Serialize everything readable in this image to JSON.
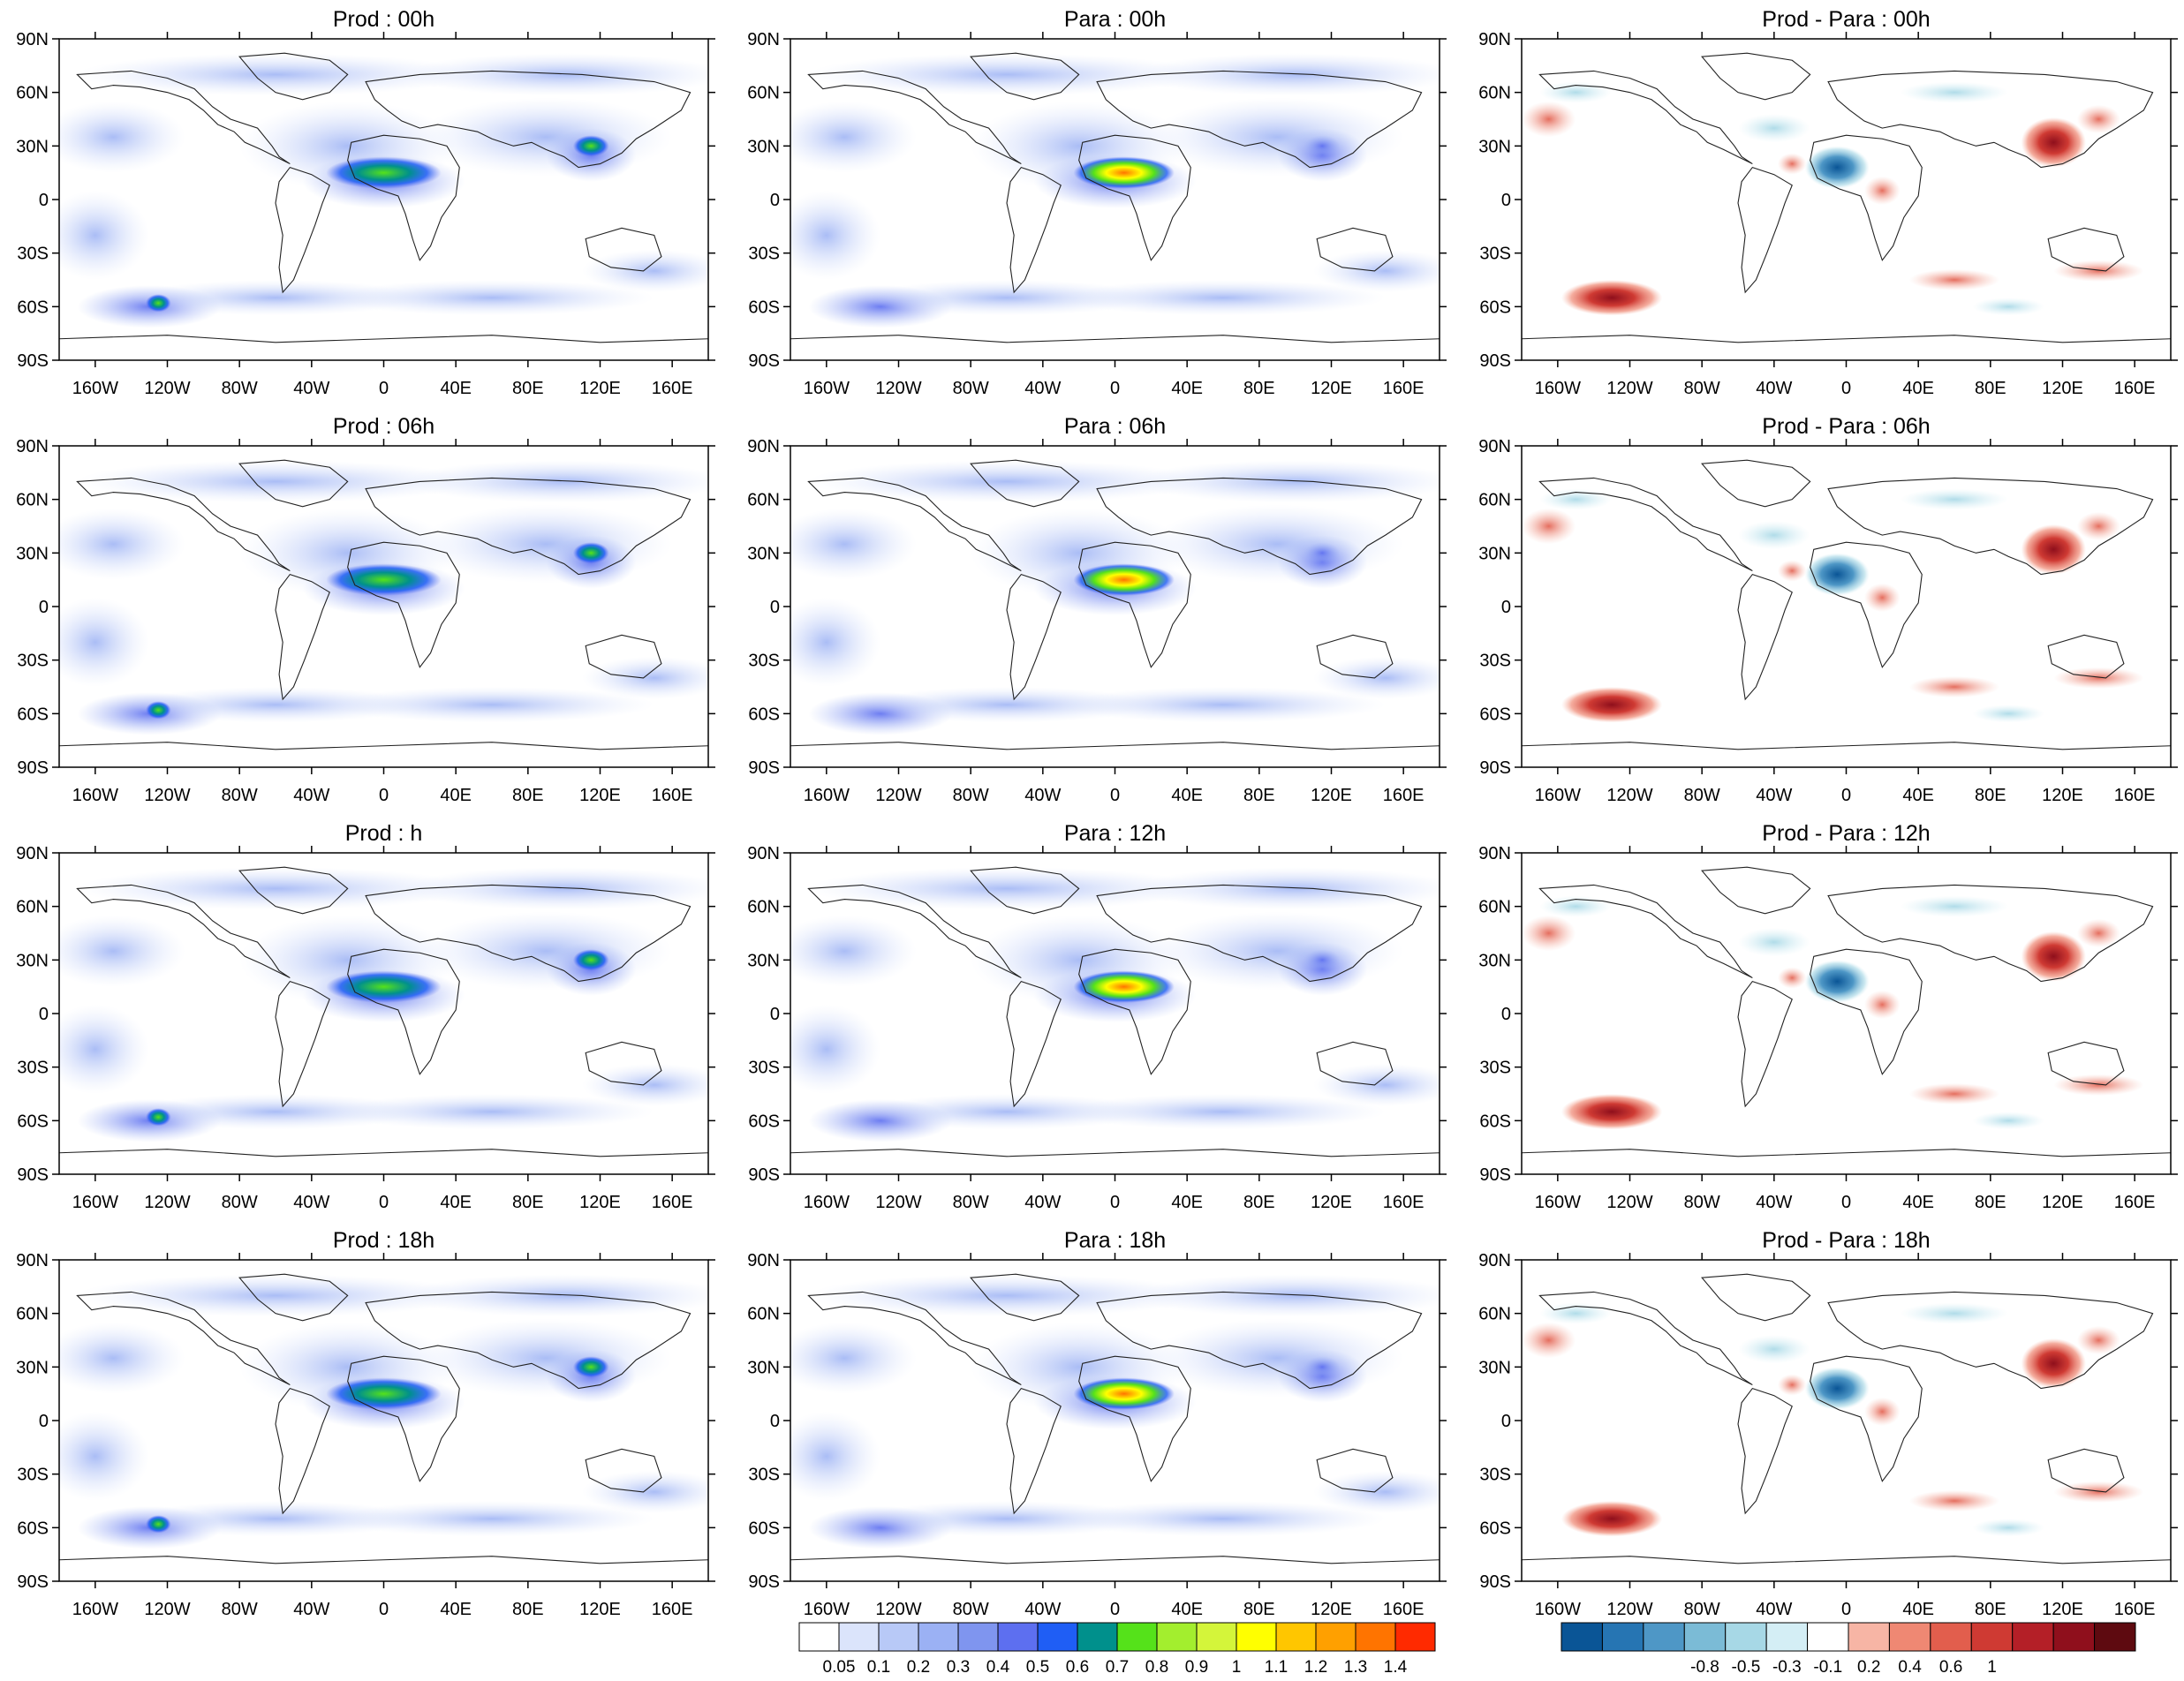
{
  "panels": [
    {
      "title": "Prod : 00h",
      "kind": "field"
    },
    {
      "title": "Para : 00h",
      "kind": "field"
    },
    {
      "title": "Prod - Para : 00h",
      "kind": "diff"
    },
    {
      "title": "Prod : 06h",
      "kind": "field"
    },
    {
      "title": "Para : 06h",
      "kind": "field"
    },
    {
      "title": "Prod - Para : 06h",
      "kind": "diff"
    },
    {
      "title": "Prod : h",
      "kind": "field"
    },
    {
      "title": "Para : 12h",
      "kind": "field"
    },
    {
      "title": "Prod - Para : 12h",
      "kind": "diff"
    },
    {
      "title": "Prod : 18h",
      "kind": "field"
    },
    {
      "title": "Para : 18h",
      "kind": "field"
    },
    {
      "title": "Prod - Para : 18h",
      "kind": "diff"
    }
  ],
  "axes": {
    "lat_labels": [
      "90N",
      "60N",
      "30N",
      "0",
      "30S",
      "60S",
      "90S"
    ],
    "lat_values": [
      90,
      60,
      30,
      0,
      -30,
      -60,
      -90
    ],
    "lon_labels": [
      "160W",
      "120W",
      "80W",
      "40W",
      "0",
      "40E",
      "80E",
      "120E",
      "160E"
    ],
    "lon_values": [
      -160,
      -120,
      -80,
      -40,
      0,
      40,
      80,
      120,
      160
    ],
    "lon_range": [
      -180,
      180
    ],
    "lat_range": [
      -90,
      90
    ]
  },
  "field_colorbar": {
    "labels": [
      "0.05",
      "0.1",
      "0.2",
      "0.3",
      "0.4",
      "0.5",
      "0.6",
      "0.7",
      "0.8",
      "0.9",
      "1",
      "1.1",
      "1.2",
      "1.3",
      "1.4"
    ],
    "colors": [
      "#ffffff",
      "#dbe4fb",
      "#b8c9f7",
      "#9bb1f4",
      "#7f95ef",
      "#5d6ff0",
      "#1f5ef5",
      "#00908c",
      "#55e21a",
      "#a3ee2e",
      "#d4f53a",
      "#ffff00",
      "#ffc600",
      "#ffa000",
      "#ff7400",
      "#ff2a00"
    ]
  },
  "diff_colorbar": {
    "labels": [
      "-0.8",
      "-0.5",
      "-0.3",
      "-0.1",
      "0.2",
      "0.4",
      "0.6",
      "1"
    ],
    "colors": [
      "#0a5596",
      "#2675b3",
      "#4e97c6",
      "#7bbbd6",
      "#a7d8e6",
      "#d4eef5",
      "#ffffff",
      "#f7b5a5",
      "#ef8873",
      "#e25e4d",
      "#cf3a33",
      "#b41f27",
      "#8f0f1c",
      "#5e0a10"
    ]
  }
}
